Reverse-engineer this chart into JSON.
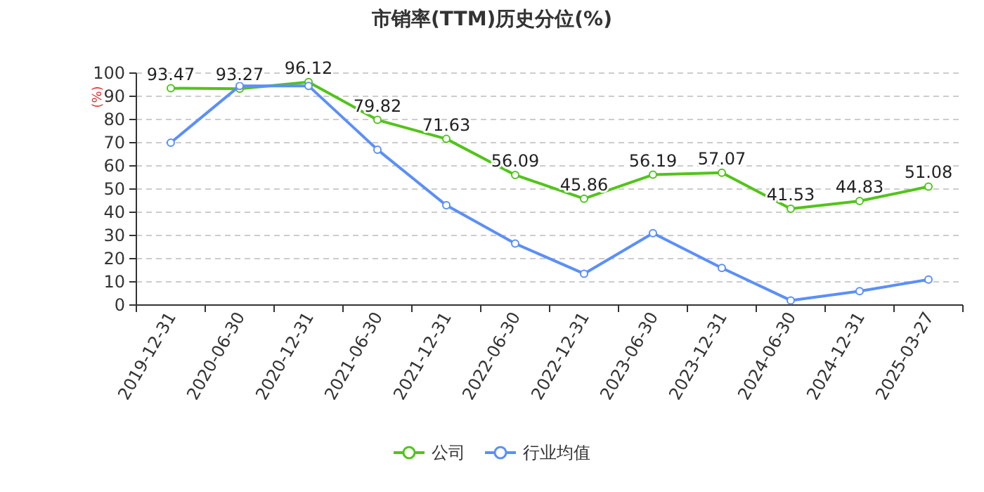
{
  "chart_data": {
    "type": "line",
    "title": "市销率(TTM)历史分位(%)",
    "ylabel": "(%)",
    "categories": [
      "2019-12-31",
      "2020-06-30",
      "2020-12-31",
      "2021-06-30",
      "2021-12-31",
      "2022-06-30",
      "2022-12-31",
      "2023-06-30",
      "2023-12-31",
      "2024-06-30",
      "2024-12-31",
      "2025-03-27"
    ],
    "series": [
      {
        "name": "公司",
        "color": "#52c41a",
        "values": [
          93.47,
          93.27,
          96.12,
          79.82,
          71.63,
          56.09,
          45.86,
          56.19,
          57.07,
          41.53,
          44.83,
          51.08
        ],
        "value_labels": [
          "93.47",
          "93.27",
          "96.12",
          "79.82",
          "71.63",
          "56.09",
          "45.86",
          "56.19",
          "57.07",
          "41.53",
          "44.83",
          "51.08"
        ]
      },
      {
        "name": "行业均值",
        "color": "#5b8ff9",
        "values": [
          70,
          94.5,
          94.5,
          67,
          43,
          26.5,
          13.5,
          31,
          16,
          2,
          6,
          11
        ]
      }
    ],
    "ylim": [
      0,
      100
    ],
    "yticks": [
      0,
      10,
      20,
      30,
      40,
      50,
      60,
      70,
      80,
      90,
      100
    ],
    "grid": "y",
    "legend": "bottom",
    "marker": "circle",
    "line_style": "solid"
  }
}
